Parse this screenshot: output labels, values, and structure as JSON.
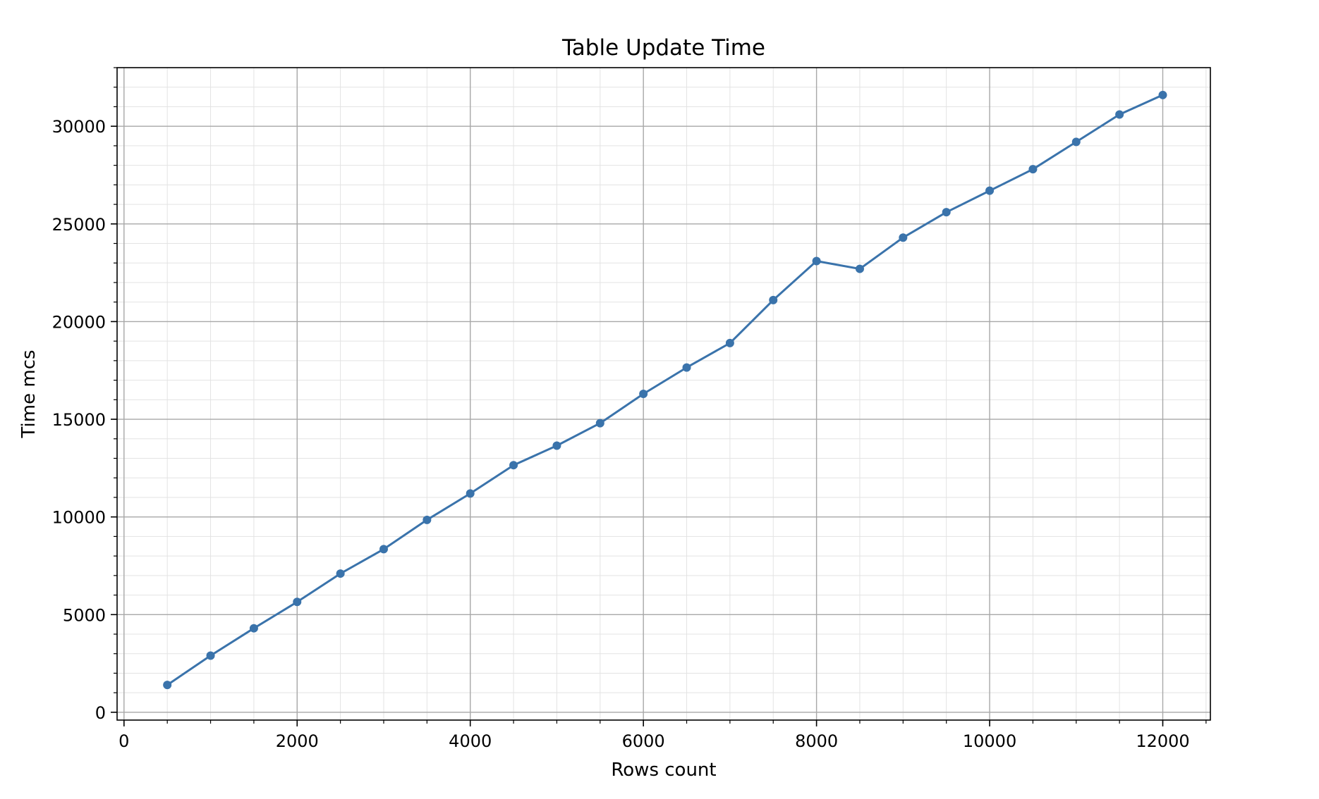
{
  "chart_data": {
    "type": "line",
    "title": "Table Update Time",
    "xlabel": "Rows count",
    "ylabel": "Time mcs",
    "xlim": [
      -80,
      12550
    ],
    "ylim": [
      -400,
      33000
    ],
    "xticks": [
      0,
      2000,
      4000,
      6000,
      8000,
      10000,
      12000
    ],
    "yticks": [
      0,
      5000,
      10000,
      15000,
      20000,
      25000,
      30000
    ],
    "x_minor_step": 500,
    "y_minor_step": 1000,
    "grid": true,
    "line_color": "#3a73ab",
    "series": [
      {
        "x": [
          500,
          1000,
          1500,
          2000,
          2500,
          3000,
          3500,
          4000,
          4500,
          5000,
          5500,
          6000,
          6500,
          7000,
          7500,
          8000,
          8500,
          9000,
          9500,
          10000,
          10500,
          11000,
          11500,
          12000
        ],
        "y": [
          1400,
          2900,
          4300,
          5650,
          7100,
          8350,
          9850,
          11200,
          12650,
          13650,
          14800,
          16300,
          17650,
          18900,
          21100,
          23100,
          22700,
          24300,
          25600,
          26700,
          27800,
          29200,
          30600,
          31600
        ]
      }
    ]
  }
}
